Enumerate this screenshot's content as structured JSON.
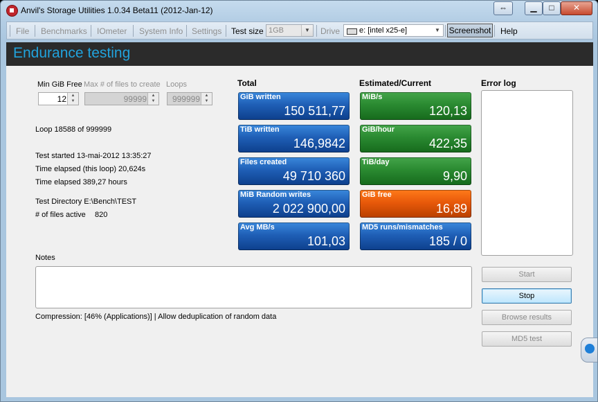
{
  "window": {
    "title": "Anvil's Storage Utilities 1.0.34 Beta11 (2012-Jan-12)",
    "controls": {
      "restore": "⇔",
      "minimize": "▁",
      "maximize": "□",
      "close": "✕"
    }
  },
  "menu": {
    "file": "File",
    "benchmarks": "Benchmarks",
    "iometer": "IOmeter",
    "system_info": "System Info",
    "settings": "Settings",
    "test_size_label": "Test size",
    "test_size_value": "1GB",
    "drive_label": "Drive",
    "drive_value": "e: [intel x25-e]",
    "screenshot": "Screenshot",
    "help": "Help"
  },
  "banner": {
    "title": "Endurance testing"
  },
  "settings": {
    "min_gib_free_label": "Min GiB Free",
    "min_gib_free_value": "12",
    "max_files_label": "Max # of files to create",
    "max_files_value": "99999",
    "loops_label": "Loops",
    "loops_value": "999999"
  },
  "info": {
    "loop": "Loop 18588 of 999999",
    "test_started": "Test started 13-mai-2012 13:35:27",
    "time_elapsed_loop": "Time elapsed (this loop) 20,624s",
    "time_elapsed": "Time elapsed 389,27 hours",
    "test_directory": "Test Directory E:\\Bench\\TEST",
    "files_active_label": "# of files active",
    "files_active_value": "820"
  },
  "totals": {
    "header": "Total",
    "tiles": [
      {
        "label": "GiB written",
        "value": "150 511,77"
      },
      {
        "label": "TiB written",
        "value": "146,9842"
      },
      {
        "label": "Files created",
        "value": "49 710 360"
      },
      {
        "label": "MiB Random writes",
        "value": "2 022 900,00"
      },
      {
        "label": "Avg MB/s",
        "value": "101,03"
      }
    ]
  },
  "estimated": {
    "header": "Estimated/Current",
    "tiles": [
      {
        "label": "MiB/s",
        "value": "120,13"
      },
      {
        "label": "GiB/hour",
        "value": "422,35"
      },
      {
        "label": "TiB/day",
        "value": "9,90"
      },
      {
        "label": "GiB free",
        "value": "16,89"
      },
      {
        "label": "MD5 runs/mismatches",
        "value": "185 / 0"
      }
    ]
  },
  "error_log": {
    "header": "Error log"
  },
  "notes": {
    "label": "Notes"
  },
  "compression": "Compression: [46% (Applications)] | Allow deduplication of random data",
  "buttons": {
    "start": "Start",
    "stop": "Stop",
    "browse": "Browse results",
    "md5": "MD5 test"
  },
  "colors": {
    "banner_text": "#21a3dd",
    "tile_blue": "#1f5fb6",
    "tile_green": "#2a8a31",
    "tile_orange": "#e8590a"
  }
}
